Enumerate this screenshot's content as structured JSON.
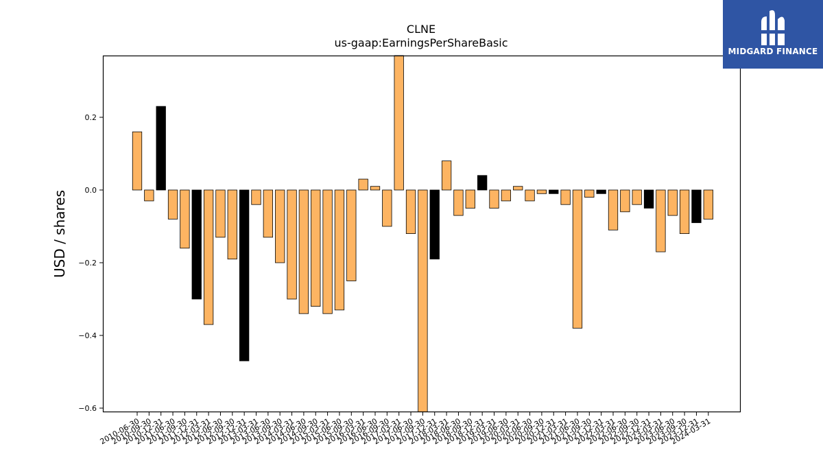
{
  "chart_data": {
    "type": "bar",
    "title": "CLNE",
    "subtitle": "us-gaap:EarningsPerShareBasic",
    "xlabel": "",
    "ylabel": "USD / shares",
    "ylim": [
      -0.61,
      0.37
    ],
    "yticks": [
      -0.6,
      -0.4,
      -0.2,
      0.0,
      0.2
    ],
    "ytick_labels": [
      "−0.6",
      "−0.4",
      "−0.2",
      "0.0",
      "0.2"
    ],
    "grid": false,
    "colors": {
      "quarter": "#fdb462",
      "annual": "#000000",
      "edge": "#000000"
    },
    "categories": [
      "2010-06-30",
      "2010-09-30",
      "2010-12-31",
      "2011-06-30",
      "2011-09-30",
      "2011-12-31",
      "2012-03-31",
      "2012-06-30",
      "2012-09-30",
      "2012-12-31",
      "2013-03-31",
      "2013-06-30",
      "2013-09-30",
      "2014-03-31",
      "2014-06-30",
      "2014-09-30",
      "2015-03-31",
      "2015-06-30",
      "2015-09-30",
      "2016-03-31",
      "2016-06-30",
      "2016-09-30",
      "2017-03-31",
      "2017-06-30",
      "2017-09-30",
      "2017-12-31",
      "2018-03-31",
      "2018-06-30",
      "2018-09-30",
      "2018-12-31",
      "2019-03-31",
      "2019-06-30",
      "2020-03-31",
      "2020-06-30",
      "2020-09-30",
      "2020-12-31",
      "2021-03-31",
      "2021-06-30",
      "2021-09-30",
      "2021-12-31",
      "2022-03-31",
      "2022-06-30",
      "2022-09-30",
      "2022-12-31",
      "2023-03-31",
      "2023-06-30",
      "2023-09-30",
      "2023-12-31",
      "2024-03-31"
    ],
    "values": [
      0.16,
      -0.03,
      0.23,
      -0.08,
      -0.16,
      -0.3,
      -0.37,
      -0.13,
      -0.19,
      -0.47,
      -0.04,
      -0.13,
      -0.2,
      -0.3,
      -0.34,
      -0.32,
      -0.34,
      -0.33,
      -0.25,
      0.03,
      0.01,
      -0.1,
      0.37,
      -0.12,
      -0.61,
      -0.19,
      0.08,
      -0.07,
      -0.05,
      0.04,
      -0.05,
      -0.03,
      0.01,
      -0.03,
      -0.01,
      -0.01,
      -0.04,
      -0.38,
      -0.02,
      -0.01,
      -0.11,
      -0.06,
      -0.04,
      -0.05,
      -0.17,
      -0.07,
      -0.12,
      -0.09,
      -0.08
    ],
    "annual": [
      false,
      false,
      true,
      false,
      false,
      true,
      false,
      false,
      false,
      true,
      false,
      false,
      false,
      false,
      false,
      false,
      false,
      false,
      false,
      false,
      false,
      false,
      false,
      false,
      false,
      true,
      false,
      false,
      false,
      true,
      false,
      false,
      false,
      false,
      false,
      true,
      false,
      false,
      false,
      true,
      false,
      false,
      false,
      true,
      false,
      false,
      false,
      true,
      false
    ]
  },
  "logo": {
    "text": "MIDGARD FINANCE"
  }
}
